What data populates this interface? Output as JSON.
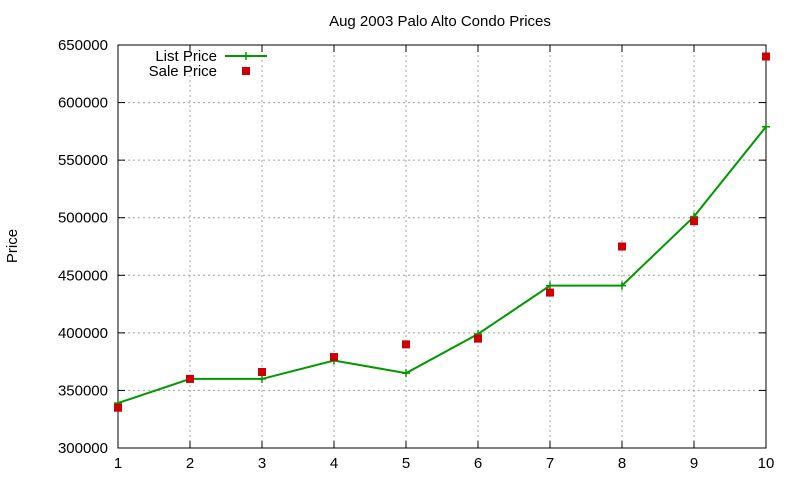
{
  "chart_data": {
    "type": "line",
    "title": "Aug 2003 Palo Alto Condo Prices",
    "xlabel": "",
    "ylabel": "Price",
    "x": [
      1,
      2,
      3,
      4,
      5,
      6,
      7,
      8,
      9,
      10
    ],
    "xlim": [
      1,
      10
    ],
    "ylim": [
      300000,
      650000
    ],
    "yticks": [
      300000,
      350000,
      400000,
      450000,
      500000,
      550000,
      600000,
      650000
    ],
    "xticks": [
      1,
      2,
      3,
      4,
      5,
      6,
      7,
      8,
      9,
      10
    ],
    "grid": true,
    "legend_position": "top-left",
    "series": [
      {
        "name": "List Price",
        "style": "lines+points",
        "marker": "plus",
        "color": "#009900",
        "values": [
          339000,
          360000,
          360000,
          376000,
          365000,
          399000,
          441000,
          441000,
          501000,
          579000
        ]
      },
      {
        "name": "Sale Price",
        "style": "points",
        "marker": "square",
        "color": "#cc0000",
        "values": [
          335000,
          360000,
          366000,
          379000,
          390000,
          395000,
          435000,
          475000,
          497000,
          640000
        ]
      }
    ]
  }
}
